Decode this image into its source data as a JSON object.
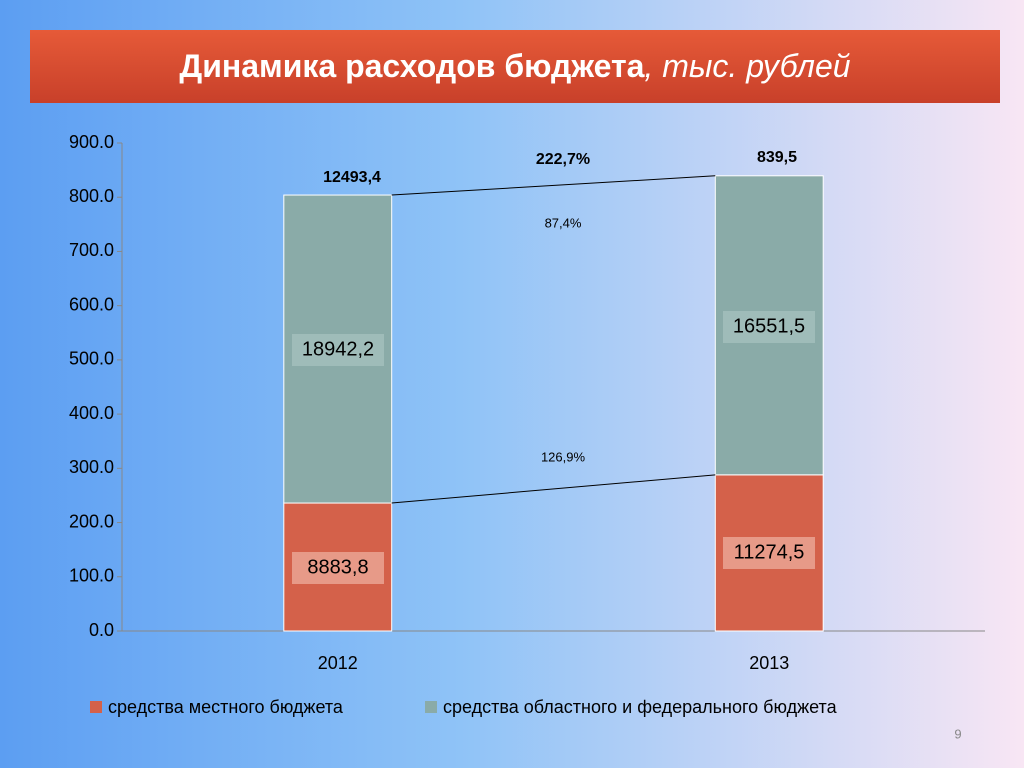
{
  "title": {
    "main": "Динамика расходов бюджета",
    "unit": ", тыс. рублей"
  },
  "page_number": "9",
  "chart_data": {
    "type": "stacked_bar",
    "categories": [
      "2012",
      "2013"
    ],
    "series": [
      {
        "name": "средства местного бюджета",
        "color": "#d4614a",
        "values": [
          236,
          288
        ]
      },
      {
        "name": "средства областного и федерального бюджета",
        "color": "#8aaba8",
        "values": [
          568,
          551.5
        ]
      }
    ],
    "ylim": [
      0,
      900
    ],
    "yticks": [
      {
        "value": 0,
        "label": "0.0"
      },
      {
        "value": 100,
        "label": "100.0"
      },
      {
        "value": 200,
        "label": "200.0"
      },
      {
        "value": 300,
        "label": "300.0"
      },
      {
        "value": 400,
        "label": "400.0"
      },
      {
        "value": 500,
        "label": "500.0"
      },
      {
        "value": 600,
        "label": "600.0"
      },
      {
        "value": 700,
        "label": "700.0"
      },
      {
        "value": 800,
        "label": "800.0"
      },
      {
        "value": 900,
        "label": "900.0"
      }
    ],
    "annotations": [
      "12493,4",
      "222,7%",
      "839,5",
      "87,4%",
      "126,9%",
      "18942,2",
      "16551,5",
      "8883,8",
      "11274,5"
    ],
    "legend": "bottom"
  }
}
